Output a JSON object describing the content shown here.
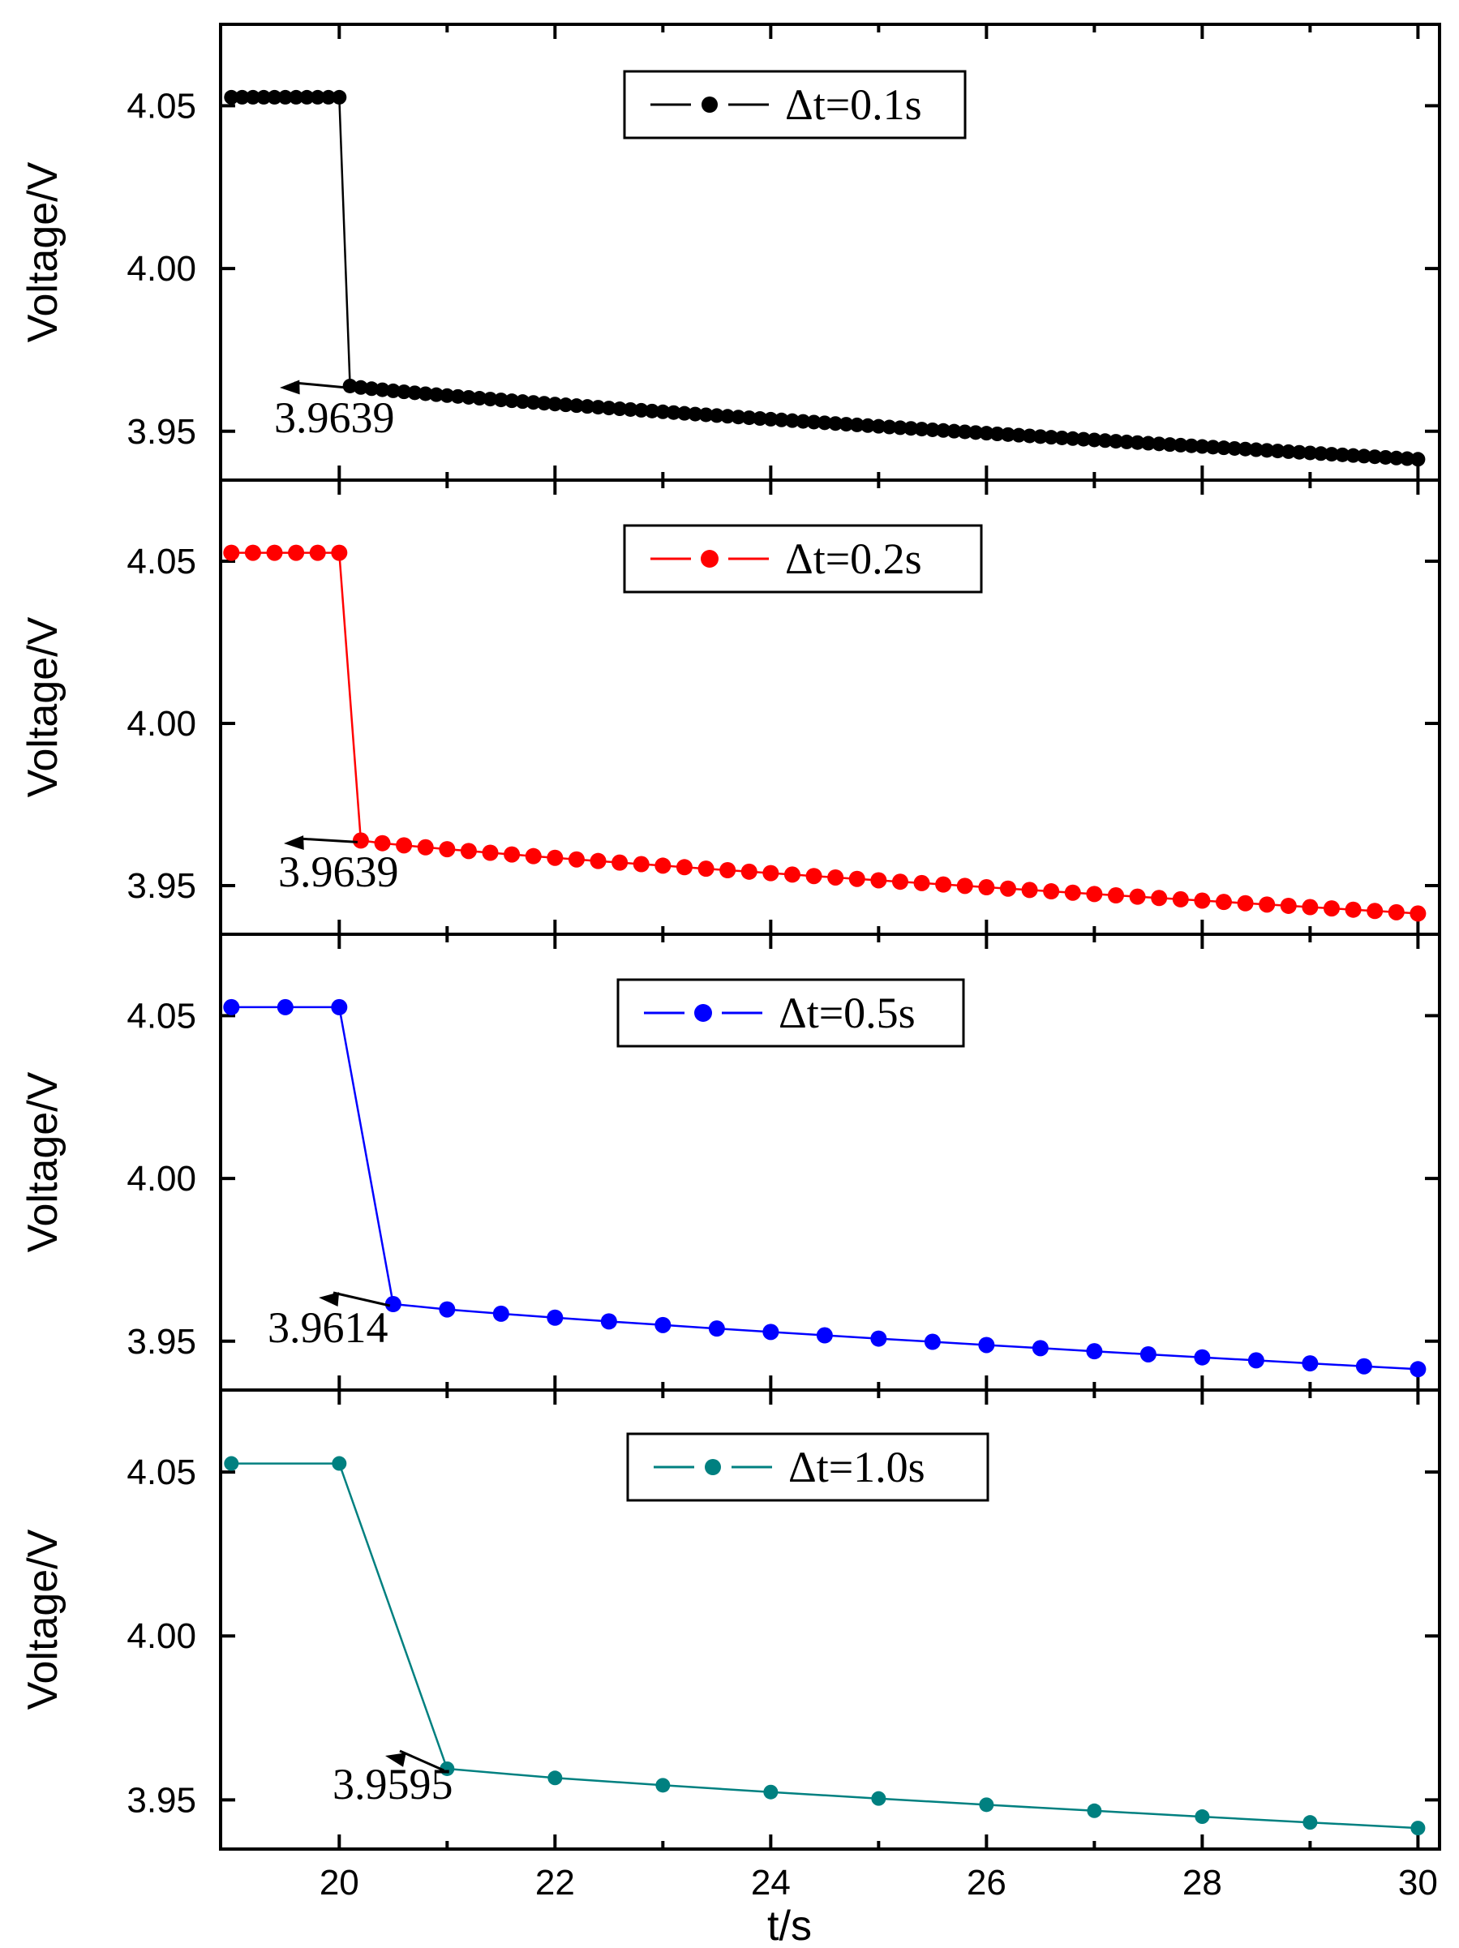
{
  "chart_data": [
    {
      "type": "line",
      "panel": 1,
      "color": "#000000",
      "legend": "Δt=0.1s",
      "step": 0.1,
      "drop_time": 20.0,
      "xlim": [
        18.9,
        30.2
      ],
      "ylim": [
        3.935,
        4.075
      ],
      "yticks": [
        "4.05",
        "4.00",
        "3.95"
      ],
      "ytick_values": [
        4.05,
        4.0,
        3.95
      ],
      "ylabel": "Voltage/V",
      "v_start": 4.0526,
      "v_drop": 3.9639,
      "v_end": 3.9414,
      "annotation": "3.9639",
      "annotation_value": 3.9639
    },
    {
      "type": "line",
      "panel": 2,
      "color": "#ff0000",
      "legend": "Δt=0.2s",
      "step": 0.2,
      "drop_time": 20.0,
      "xlim": [
        18.9,
        30.2
      ],
      "ylim": [
        3.935,
        4.075
      ],
      "yticks": [
        "4.05",
        "4.00",
        "3.95"
      ],
      "ytick_values": [
        4.05,
        4.0,
        3.95
      ],
      "ylabel": "Voltage/V",
      "v_start": 4.0526,
      "v_drop": 3.9639,
      "v_end": 3.9414,
      "annotation": "3.9639",
      "annotation_value": 3.9639
    },
    {
      "type": "line",
      "panel": 3,
      "color": "#0000ff",
      "legend": "Δt=0.5s",
      "step": 0.5,
      "drop_time": 20.0,
      "xlim": [
        18.9,
        30.2
      ],
      "ylim": [
        3.935,
        4.075
      ],
      "yticks": [
        "4.05",
        "4.00",
        "3.95"
      ],
      "ytick_values": [
        4.05,
        4.0,
        3.95
      ],
      "ylabel": "Voltage/V",
      "v_start": 4.0526,
      "v_drop": 3.9614,
      "v_end": 3.9414,
      "annotation": "3.9614",
      "annotation_value": 3.9614
    },
    {
      "type": "line",
      "panel": 4,
      "color": "#008080",
      "legend": "Δt=1.0s",
      "step": 1.0,
      "drop_time": 20.0,
      "xlim": [
        18.9,
        30.2
      ],
      "ylim": [
        3.935,
        4.075
      ],
      "yticks": [
        "4.05",
        "4.00",
        "3.95"
      ],
      "ytick_values": [
        4.05,
        4.0,
        3.95
      ],
      "ylabel": "Voltage/V",
      "v_start": 4.0526,
      "v_drop": 3.9595,
      "v_end": 3.9414,
      "annotation": "3.9595",
      "annotation_value": 3.9595,
      "xticks": [
        "20",
        "22",
        "24",
        "26",
        "28",
        "30"
      ],
      "xtick_values": [
        20,
        22,
        24,
        26,
        28,
        30
      ],
      "xlabel": "t/s"
    }
  ]
}
